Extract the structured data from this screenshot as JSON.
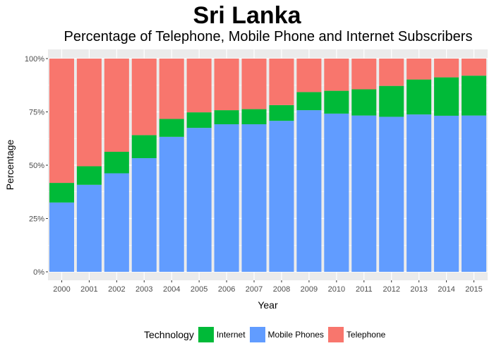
{
  "chart_data": {
    "type": "bar",
    "stacked": true,
    "title": "Sri Lanka",
    "subtitle": "Percentage of Telephone, Mobile Phone and Internet Subscribers",
    "xlabel": "Year",
    "ylabel": "Percentage",
    "ylim": [
      0,
      100
    ],
    "yticks": [
      "0%",
      "25%",
      "50%",
      "75%",
      "100%"
    ],
    "yticks_values": [
      0,
      25,
      50,
      75,
      100
    ],
    "grid": true,
    "legend_position": "bottom",
    "legend_title": "Technology",
    "categories": [
      "2000",
      "2001",
      "2002",
      "2003",
      "2004",
      "2005",
      "2006",
      "2007",
      "2008",
      "2009",
      "2010",
      "2011",
      "2012",
      "2013",
      "2014",
      "2015"
    ],
    "series": [
      {
        "name": "Mobile Phones",
        "color": "#619CFF",
        "values": [
          32.5,
          40.8,
          46.2,
          53.3,
          63.3,
          67.5,
          69.2,
          69.2,
          70.8,
          75.8,
          74.2,
          73.3,
          72.7,
          73.8,
          73.2,
          73.3
        ]
      },
      {
        "name": "Internet",
        "color": "#00BA38",
        "values": [
          9.2,
          8.7,
          10.1,
          10.8,
          8.4,
          7.3,
          6.6,
          7.1,
          7.4,
          8.5,
          10.7,
          12.3,
          14.5,
          16.4,
          18.0,
          18.7
        ]
      },
      {
        "name": "Telephone",
        "color": "#F8766D",
        "values": [
          58.3,
          50.5,
          43.7,
          35.9,
          28.3,
          25.2,
          24.2,
          23.7,
          21.8,
          15.7,
          15.1,
          14.4,
          12.8,
          9.8,
          8.8,
          8.0
        ]
      }
    ],
    "legend_order": [
      "Internet",
      "Mobile Phones",
      "Telephone"
    ],
    "panel_background": "#EBEBEB",
    "gridline_color": "#FFFFFF"
  }
}
